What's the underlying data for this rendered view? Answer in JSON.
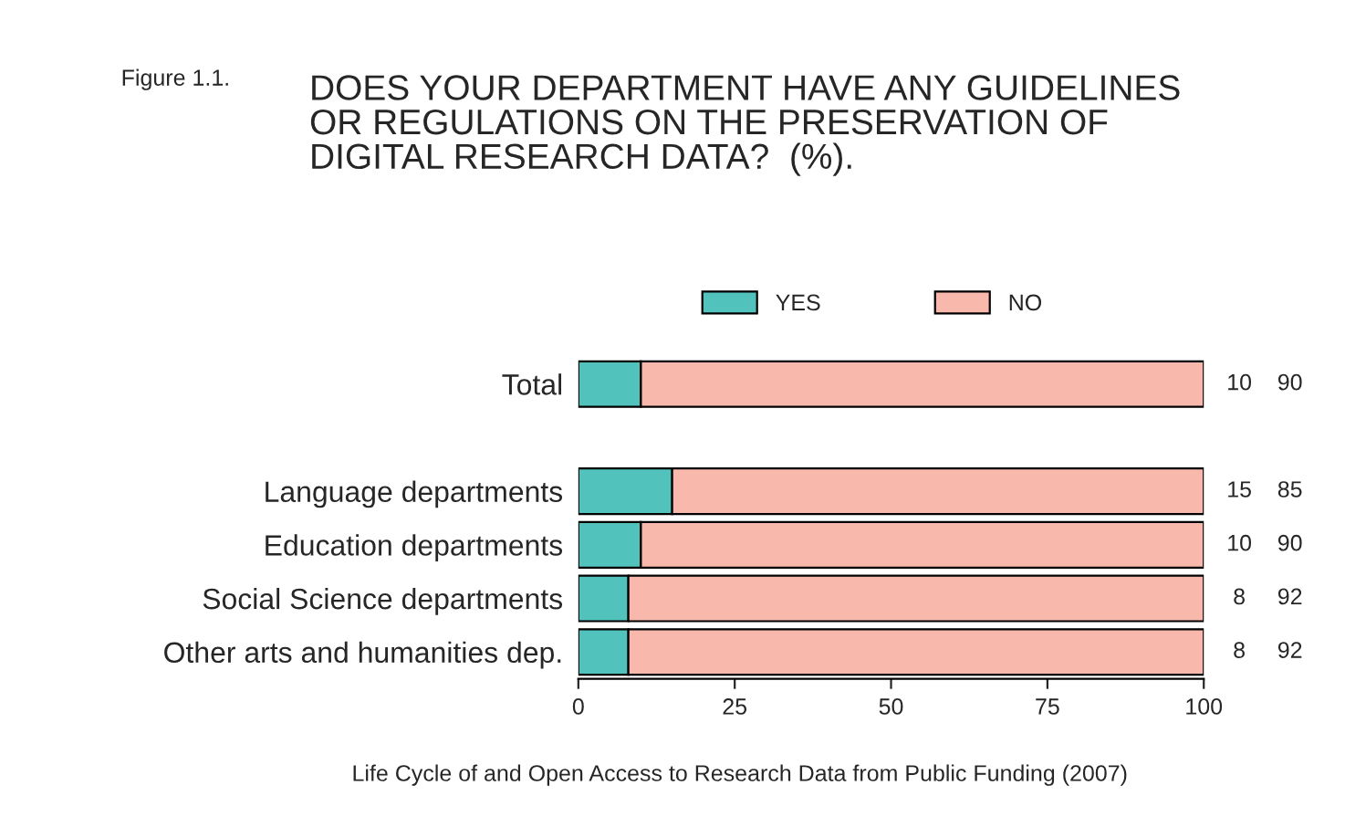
{
  "chart_data": {
    "type": "bar",
    "orientation": "horizontal",
    "stacked": true,
    "title": "DOES YOUR DEPARTMENT HAVE ANY GUIDELINES\nOR REGULATIONS ON THE PRESERVATION OF\nDIGITAL RESEARCH DATA?  (%).",
    "annotations": [
      "Figure 1.1.",
      "Life Cycle of and Open Access to Research Data from Public Funding (2007)"
    ],
    "categories": [
      "Total",
      null,
      "Language departments",
      "Education departments",
      "Social Science departments",
      "Other arts and humanities dep."
    ],
    "series": [
      {
        "name": "YES",
        "color": "#52c3bc",
        "values": [
          10,
          null,
          15,
          10,
          8,
          8
        ]
      },
      {
        "name": "NO",
        "color": "#f9b8ac",
        "values": [
          90,
          null,
          85,
          90,
          92,
          92
        ]
      }
    ],
    "xlim": [
      0,
      100
    ],
    "xticks": [
      0,
      25,
      50,
      75,
      100
    ],
    "grid": false,
    "legend": "top",
    "data_labels": true
  }
}
